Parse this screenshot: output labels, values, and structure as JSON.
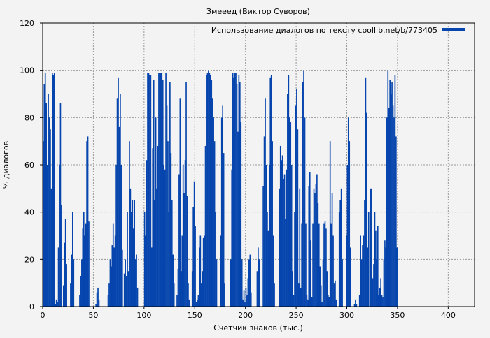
{
  "chart_data": {
    "type": "bar",
    "title": "Змеeед (Виктор Суворов)",
    "xlabel": "Счетчик знаков (тыс.)",
    "ylabel": "% диалогов",
    "xlim": [
      0,
      426
    ],
    "ylim": [
      0,
      120
    ],
    "xticks": [
      "0",
      "50",
      "100",
      "150",
      "200",
      "250",
      "300",
      "350",
      "400"
    ],
    "yticks": [
      "0",
      "20",
      "40",
      "60",
      "80",
      "100",
      "120"
    ],
    "grid": true,
    "legend_position": "top-right",
    "series": [
      {
        "name": "Использование диалогов по тексту coollib.net/b/773405",
        "color": "#0645ad",
        "x_start": 0,
        "x_step": 1,
        "values": [
          70,
          94,
          99,
          86,
          60,
          90,
          80,
          75,
          50,
          99,
          98,
          99,
          1,
          3,
          2,
          25,
          60,
          86,
          43,
          0,
          9,
          27,
          37,
          18,
          0,
          0,
          0,
          10,
          22,
          40,
          20,
          0,
          0,
          0,
          0,
          0,
          5,
          13,
          20,
          33,
          40,
          30,
          35,
          70,
          72,
          36,
          0,
          0,
          0,
          0,
          0,
          0,
          1,
          6,
          8,
          3,
          0,
          0,
          0,
          0,
          0,
          0,
          0,
          0,
          5,
          10,
          20,
          17,
          26,
          35,
          25,
          30,
          60,
          88,
          97,
          76,
          90,
          60,
          24,
          0,
          14,
          20,
          13,
          40,
          15,
          70,
          50,
          40,
          45,
          33,
          45,
          20,
          22,
          8,
          0,
          0,
          0,
          0,
          0,
          0,
          40,
          30,
          62,
          99,
          99,
          98,
          98,
          25,
          67,
          96,
          45,
          80,
          50,
          68,
          99,
          99,
          99,
          99,
          96,
          60,
          58,
          99,
          85,
          70,
          40,
          95,
          65,
          45,
          22,
          10,
          0,
          0,
          5,
          16,
          56,
          88,
          15,
          30,
          60,
          48,
          62,
          95,
          47,
          10,
          3,
          0,
          0,
          15,
          42,
          53,
          34,
          2,
          3,
          5,
          25,
          30,
          10,
          15,
          29,
          30,
          68,
          98,
          99,
          100,
          99,
          98,
          96,
          88,
          80,
          70,
          40,
          20,
          0,
          0,
          0,
          30,
          80,
          85,
          65,
          10,
          0,
          0,
          0,
          0,
          0,
          20,
          58,
          99,
          97,
          99,
          99,
          94,
          74,
          98,
          95,
          78,
          20,
          3,
          7,
          2,
          8,
          5,
          12,
          20,
          22,
          6,
          0,
          0,
          0,
          0,
          0,
          15,
          25,
          20,
          0,
          0,
          0,
          51,
          72,
          88,
          60,
          40,
          32,
          60,
          97,
          98,
          70,
          30,
          10,
          0,
          0,
          0,
          0,
          50,
          68,
          62,
          64,
          54,
          56,
          37,
          58,
          90,
          98,
          80,
          78,
          60,
          15,
          5,
          40,
          85,
          92,
          75,
          10,
          50,
          8,
          35,
          95,
          100,
          80,
          35,
          5,
          3,
          51,
          57,
          28,
          4,
          35,
          50,
          48,
          52,
          56,
          44,
          35,
          17,
          9,
          2,
          20,
          35,
          36,
          33,
          15,
          5,
          4,
          70,
          35,
          48,
          30,
          10,
          11,
          3,
          0,
          0,
          40,
          45,
          50,
          20,
          0,
          0,
          0,
          30,
          60,
          80,
          70,
          25,
          0,
          0,
          0,
          1,
          3,
          1,
          0,
          0,
          5,
          30,
          20,
          26,
          30,
          45,
          97,
          82,
          25,
          40,
          0,
          50,
          50,
          12,
          18,
          40,
          32,
          20,
          34,
          5,
          8,
          12,
          5,
          4,
          20,
          28,
          25,
          80,
          100,
          84,
          96,
          90,
          95,
          85,
          80,
          98,
          72,
          25
        ]
      }
    ]
  }
}
